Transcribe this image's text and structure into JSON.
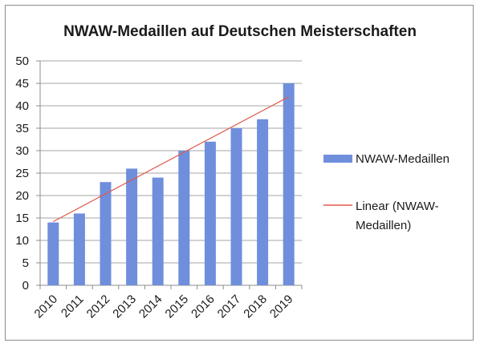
{
  "chart_data": {
    "type": "bar",
    "title": "NWAW-Medaillen auf Deutschen Meisterschaften",
    "xlabel": "",
    "ylabel": "",
    "categories": [
      "2010",
      "2011",
      "2012",
      "2013",
      "2014",
      "2015",
      "2016",
      "2017",
      "2018",
      "2019"
    ],
    "series": [
      {
        "name": "NWAW-Medaillen",
        "values": [
          14,
          16,
          23,
          26,
          24,
          30,
          32,
          35,
          37,
          45
        ],
        "color": "#6f8fdc"
      }
    ],
    "trendline": {
      "name": "Linear (NWAW-Medaillen)",
      "start": 14.2,
      "end": 42.0,
      "color": "#e05a4b"
    },
    "ylim": [
      0,
      50
    ],
    "yticks": [
      0,
      5,
      10,
      15,
      20,
      25,
      30,
      35,
      40,
      45,
      50
    ],
    "grid": true,
    "legend_position": "right",
    "legend": [
      "NWAW-Medaillen",
      "Linear (NWAW-",
      "Medaillen)"
    ]
  }
}
